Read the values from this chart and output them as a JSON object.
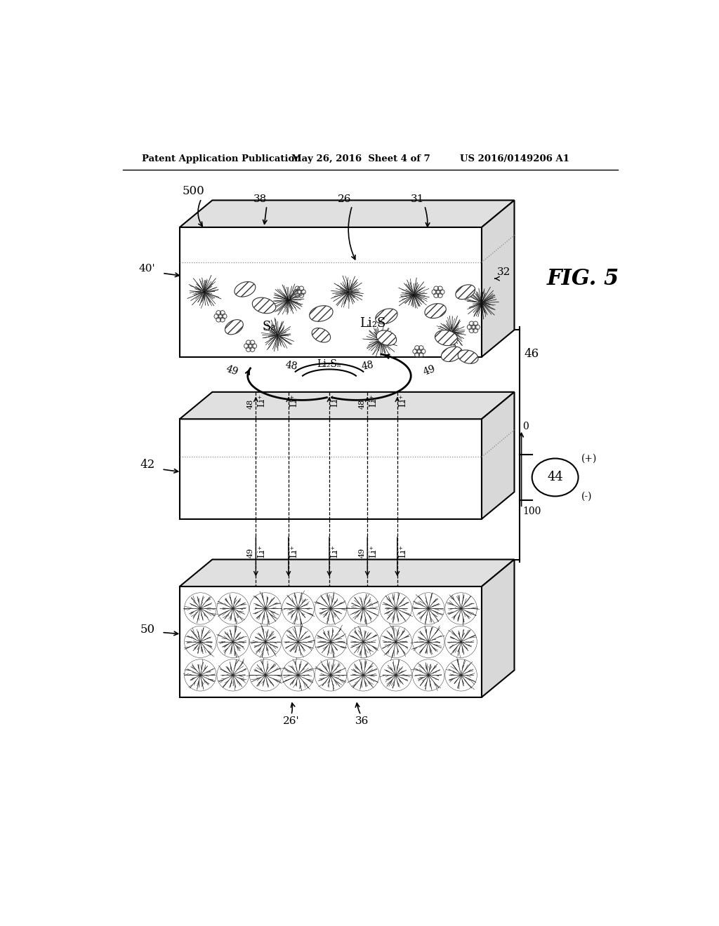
{
  "bg_color": "#ffffff",
  "line_color": "#000000",
  "header_left": "Patent Application Publication",
  "header_center": "May 26, 2016  Sheet 4 of 7",
  "header_right": "US 2016/0149206 A1",
  "fig_label": "FIG. 5",
  "label_500": "500",
  "label_40p": "40'",
  "label_38": "38",
  "label_26": "26",
  "label_31": "31",
  "label_32": "32",
  "label_46": "46",
  "label_42": "42",
  "label_44": "44",
  "label_50": "50",
  "label_26p": "26'",
  "label_36": "36",
  "label_49": "49",
  "label_48": "48",
  "label_Li2Sn": "Li₂Sₙ",
  "label_Li_plus": "Li⁺",
  "label_0": "0",
  "label_100": "100",
  "label_plus": "(+)",
  "label_minus": "(-)",
  "label_S8": "S₈",
  "label_Li2S": "Li₂S"
}
